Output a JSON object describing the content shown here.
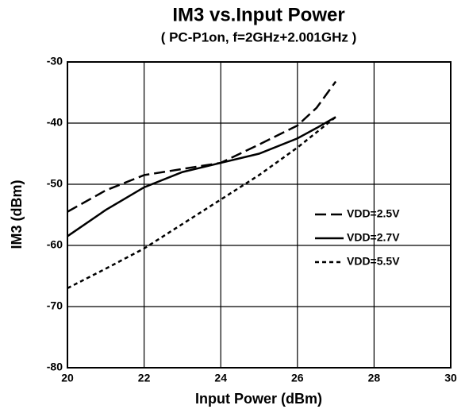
{
  "chart_data": {
    "type": "line",
    "title": "IM3 vs.Input Power",
    "subtitle": "( PC-P1on, f=2GHz+2.001GHz )",
    "x_label": "Input Power (dBm)",
    "y_label": "IM3 (dBm)",
    "x": [
      20,
      21,
      22,
      23,
      24,
      25,
      26,
      26.5,
      27
    ],
    "series": [
      {
        "name": "VDD=2.5V",
        "color": "#000000",
        "linestyle": "dashed",
        "values": [
          -54.5,
          -51,
          -48.5,
          -47.5,
          -46.5,
          -43.5,
          -40.4,
          -37.5,
          -33.2
        ]
      },
      {
        "name": "VDD=2.7V",
        "color": "#000000",
        "linestyle": "solid",
        "values": [
          -58.5,
          -54.2,
          -50.5,
          -48,
          -46.5,
          -45,
          -42.5,
          -40.8,
          -39
        ]
      },
      {
        "name": "VDD=5.5V",
        "color": "#000000",
        "linestyle": "dotted",
        "values": [
          -67,
          -63.8,
          -60.5,
          -56.5,
          -52.5,
          -48.5,
          -44,
          -41.5,
          -39
        ]
      }
    ],
    "xlim": [
      20,
      30
    ],
    "xticks": [
      20,
      22,
      24,
      26,
      28,
      30
    ],
    "ylim": [
      -80,
      -30
    ],
    "yticks": [
      -80,
      -70,
      -60,
      -50,
      -40,
      -30
    ],
    "grid": true,
    "legend": "right"
  }
}
